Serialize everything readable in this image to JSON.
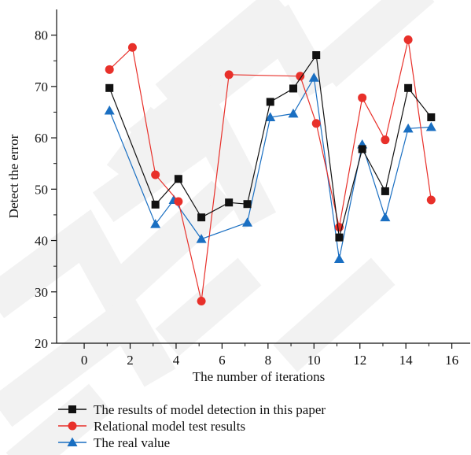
{
  "chart_data": {
    "type": "line",
    "title": "",
    "xlabel": "The number of iterations",
    "ylabel": "Detect the error",
    "xlim": [
      -1.2,
      16.8
    ],
    "ylim": [
      20,
      85
    ],
    "x_ticks": [
      0,
      2,
      4,
      6,
      8,
      10,
      12,
      14,
      16
    ],
    "y_ticks": [
      20,
      30,
      40,
      50,
      60,
      70,
      80
    ],
    "grid": false,
    "legend_position": "bottom-center",
    "series": [
      {
        "name": "The results of model detection in this paper",
        "color": "#111111",
        "marker": "square",
        "points": [
          [
            1.1,
            69.7
          ],
          [
            3.1,
            47.0
          ],
          [
            4.1,
            52.0
          ],
          [
            5.1,
            44.5
          ],
          [
            6.3,
            47.4
          ],
          [
            7.1,
            47.1
          ],
          [
            8.1,
            67.0
          ],
          [
            9.1,
            69.6
          ],
          [
            10.1,
            76.1
          ],
          [
            11.1,
            40.6
          ],
          [
            12.1,
            57.8
          ],
          [
            13.1,
            49.6
          ],
          [
            14.1,
            69.7
          ],
          [
            15.1,
            64.0
          ]
        ]
      },
      {
        "name": "Relational model test results",
        "color": "#e8302a",
        "marker": "circle",
        "points": [
          [
            1.1,
            73.3
          ],
          [
            2.1,
            77.6
          ],
          [
            3.1,
            52.8
          ],
          [
            4.1,
            47.6
          ],
          [
            5.1,
            28.2
          ],
          [
            6.3,
            72.3
          ],
          [
            9.4,
            72.0
          ],
          [
            10.1,
            62.8
          ],
          [
            11.1,
            42.6
          ],
          [
            12.1,
            67.8
          ],
          [
            13.1,
            59.6
          ],
          [
            14.1,
            79.1
          ],
          [
            15.1,
            47.9
          ]
        ]
      },
      {
        "name": "The real value",
        "color": "#1a6fc2",
        "marker": "triangle",
        "points": [
          [
            1.1,
            65.3
          ],
          [
            3.1,
            43.2
          ],
          [
            3.9,
            47.9
          ],
          [
            5.1,
            40.3
          ],
          [
            7.1,
            43.5
          ],
          [
            8.1,
            64.0
          ],
          [
            9.1,
            64.7
          ],
          [
            10.0,
            71.7
          ],
          [
            11.1,
            36.4
          ],
          [
            12.1,
            58.7
          ],
          [
            13.1,
            44.5
          ],
          [
            14.1,
            61.8
          ],
          [
            15.1,
            62.1
          ]
        ]
      }
    ]
  },
  "watermark": {
    "text": "RETRACTED",
    "color": "#b9b9b9"
  }
}
